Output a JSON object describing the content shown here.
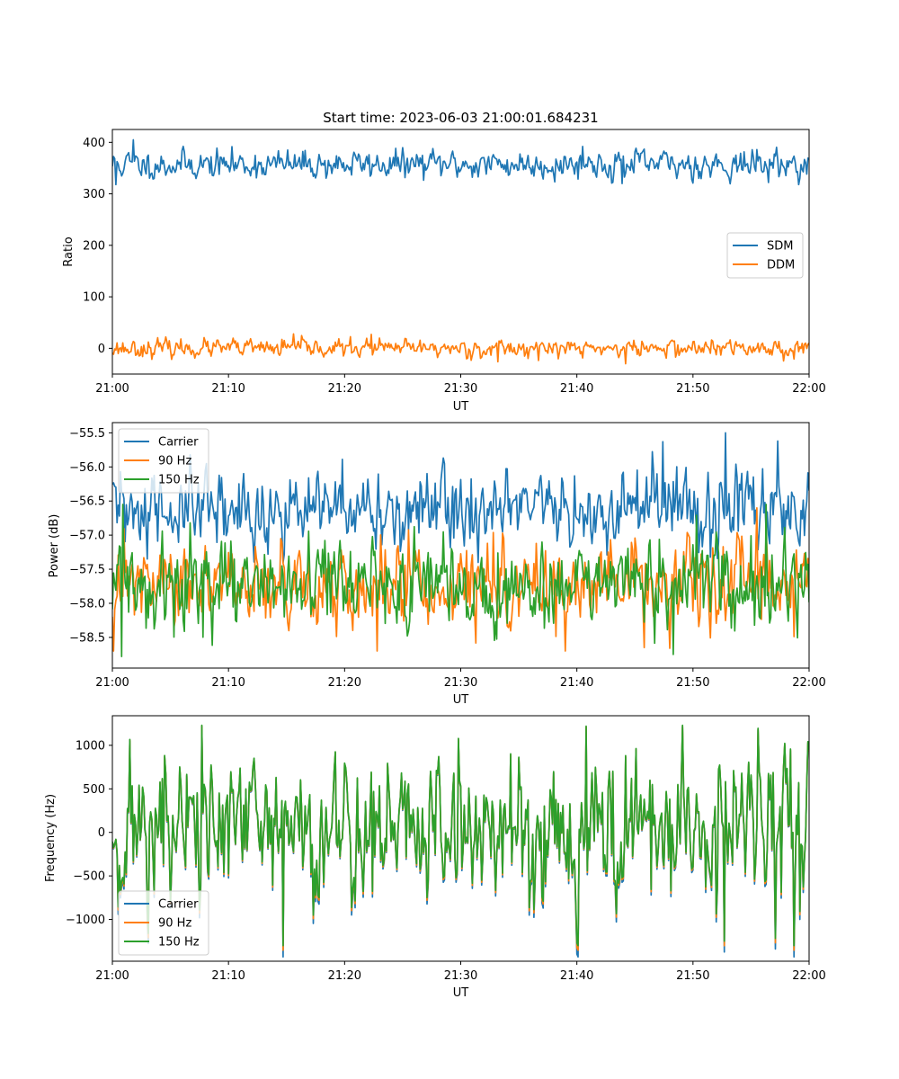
{
  "chart_data": [
    {
      "type": "line",
      "title": "Start time: 2023-06-03 21:00:01.684231",
      "xlabel": "UT",
      "ylabel": "Ratio",
      "xlim": [
        "21:00",
        "22:00"
      ],
      "ylim": [
        -50,
        425
      ],
      "xticks": [
        "21:00",
        "21:10",
        "21:20",
        "21:30",
        "21:40",
        "21:50",
        "22:00"
      ],
      "yticks": [
        0,
        100,
        200,
        300,
        400
      ],
      "ytick_labels": [
        "0",
        "100",
        "200",
        "300",
        "400"
      ],
      "grid": false,
      "legend_position": "center-right",
      "series": [
        {
          "name": "SDM",
          "color": "#1f77b4",
          "mean": 357,
          "spread": 13,
          "min": 318,
          "max": 405,
          "seed": 11,
          "peaks": [
            {
              "x": "21:01:45",
              "y": 405
            },
            {
              "x": "21:40:30",
              "y": 392
            },
            {
              "x": "21:00:20",
              "y": 318
            },
            {
              "x": "21:43:55",
              "y": 320
            }
          ]
        },
        {
          "name": "DDM",
          "color": "#ff7f0e",
          "mean": 0,
          "spread": 8,
          "min": -30,
          "max": 28,
          "seed": 23,
          "peaks": [
            {
              "x": "21:15:35",
              "y": 28
            },
            {
              "x": "21:22:20",
              "y": 27
            },
            {
              "x": "21:44:10",
              "y": -30
            },
            {
              "x": "21:33:10",
              "y": -26
            }
          ]
        }
      ]
    },
    {
      "type": "line",
      "xlabel": "UT",
      "ylabel": "Power (dB)",
      "xlim": [
        "21:00",
        "22:00"
      ],
      "ylim": [
        -58.95,
        -55.35
      ],
      "xticks": [
        "21:00",
        "21:10",
        "21:20",
        "21:30",
        "21:40",
        "21:50",
        "22:00"
      ],
      "yticks": [
        -58.5,
        -58.0,
        -57.5,
        -57.0,
        -56.5,
        -56.0,
        -55.5
      ],
      "ytick_labels": [
        "−58.5",
        "−58.0",
        "−57.5",
        "−57.0",
        "−56.5",
        "−56.0",
        "−55.5"
      ],
      "grid": false,
      "legend_position": "upper-left",
      "series": [
        {
          "name": "Carrier",
          "color": "#1f77b4",
          "mean": -56.65,
          "spread": 0.28,
          "min": -57.4,
          "max": -55.5,
          "seed": 31,
          "peaks": [
            {
              "x": "21:52:45",
              "y": -55.5
            },
            {
              "x": "21:47:25",
              "y": -55.63
            },
            {
              "x": "21:57:15",
              "y": -55.62
            },
            {
              "x": "21:03:00",
              "y": -57.35
            }
          ]
        },
        {
          "name": "90 Hz",
          "color": "#ff7f0e",
          "mean": -57.75,
          "spread": 0.28,
          "min": -58.7,
          "max": -56.6,
          "seed": 47,
          "peaks": [
            {
              "x": "21:22:45",
              "y": -58.7
            },
            {
              "x": "21:45:50",
              "y": -58.65
            },
            {
              "x": "21:55:30",
              "y": -56.6
            }
          ]
        },
        {
          "name": "150 Hz",
          "color": "#2ca02c",
          "mean": -57.75,
          "spread": 0.3,
          "min": -58.78,
          "max": -56.55,
          "seed": 59,
          "peaks": [
            {
              "x": "21:00:50",
              "y": -58.78
            },
            {
              "x": "21:48:15",
              "y": -58.75
            },
            {
              "x": "21:56:15",
              "y": -56.55
            }
          ]
        }
      ]
    },
    {
      "type": "line",
      "xlabel": "UT",
      "ylabel": "Frequency (Hz)",
      "xlim": [
        "21:00",
        "22:00"
      ],
      "ylim": [
        -1480,
        1340
      ],
      "xticks": [
        "21:00",
        "21:10",
        "21:20",
        "21:30",
        "21:40",
        "21:50",
        "22:00"
      ],
      "yticks": [
        -1000,
        -500,
        0,
        500,
        1000
      ],
      "ytick_labels": [
        "−1000",
        "−500",
        "0",
        "500",
        "1000"
      ],
      "grid": false,
      "legend_position": "lower-left",
      "series": [
        {
          "name": "Carrier",
          "color": "#1f77b4",
          "offset": -60
        },
        {
          "name": "90 Hz",
          "color": "#ff7f0e",
          "offset": -25
        },
        {
          "name": "150 Hz",
          "color": "#2ca02c",
          "offset": 0
        }
      ],
      "base_signal": {
        "mean": 30,
        "spread": 420,
        "min": -1300,
        "max": 1230,
        "seed": 71,
        "peaks": [
          {
            "x": "21:07:40",
            "y": 1230
          },
          {
            "x": "21:40:50",
            "y": 1220
          },
          {
            "x": "21:14:40",
            "y": -1300
          },
          {
            "x": "21:52:40",
            "y": -1250
          },
          {
            "x": "21:29:50",
            "y": 1080
          }
        ]
      }
    }
  ]
}
